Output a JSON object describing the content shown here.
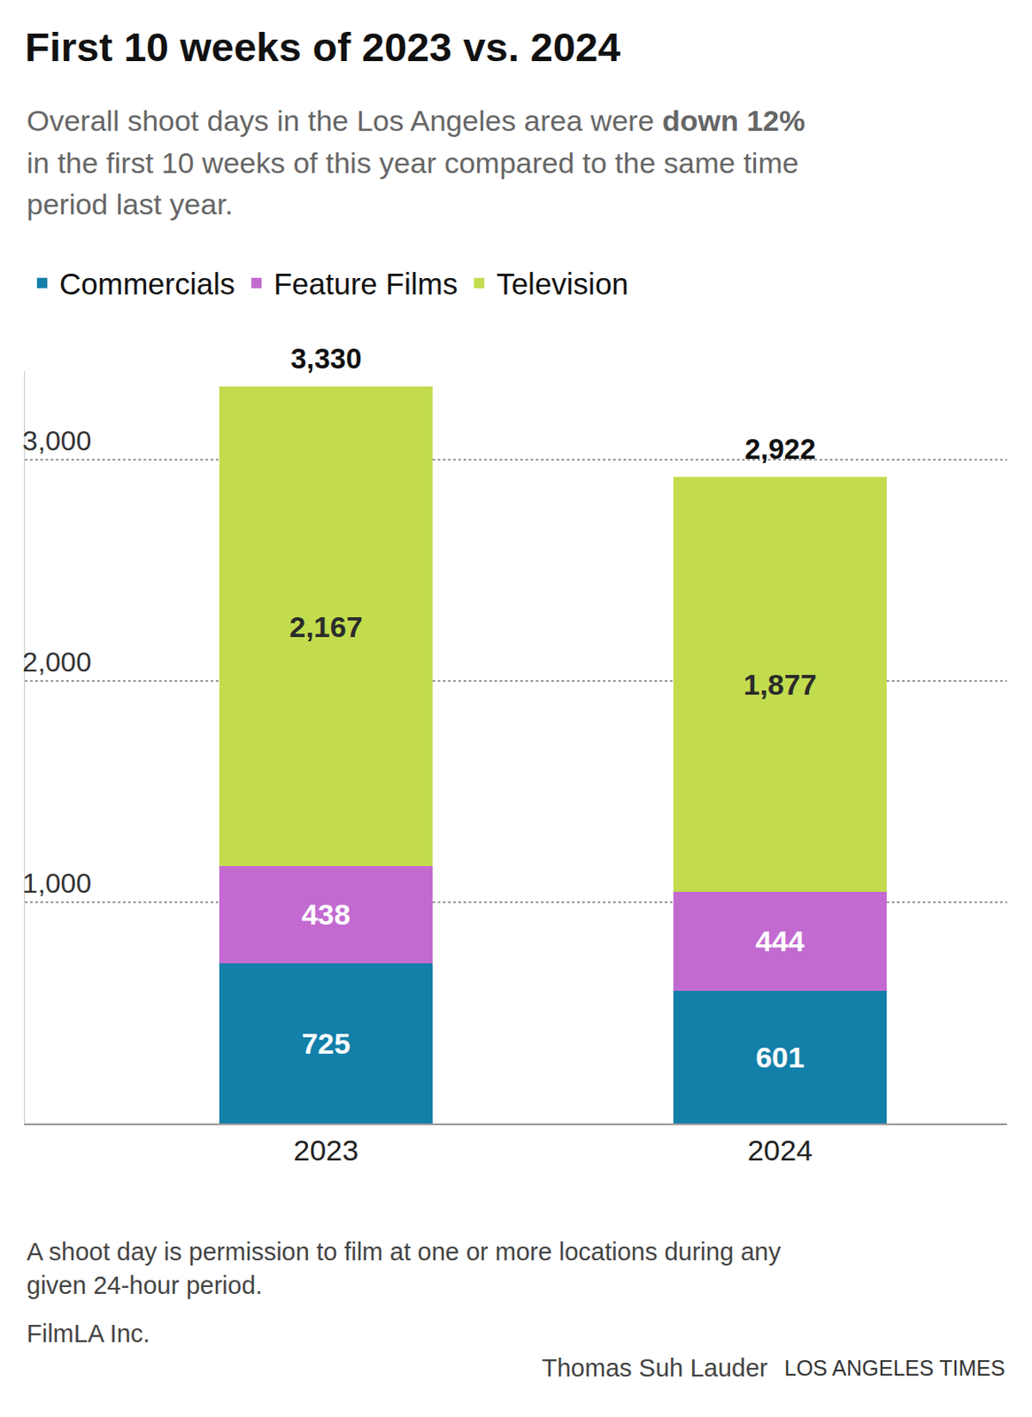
{
  "chart_data": {
    "type": "bar",
    "stacked": true,
    "title": "First 10 weeks of 2023 vs. 2024",
    "subtitle": [
      "Overall shoot days in the Los Angeles area were down 12%",
      "in the first 10 weeks of this year compared to the same time",
      "period last year."
    ],
    "subtitle_emphasis": "down 12%",
    "categories": [
      "2023",
      "2024"
    ],
    "series": [
      {
        "name": "Commercials",
        "color": "#1380aa",
        "values": [
          725,
          601
        ]
      },
      {
        "name": "Feature Films",
        "color": "#c36ad1",
        "values": [
          438,
          444
        ]
      },
      {
        "name": "Television",
        "color": "#c2dc4e",
        "values": [
          2167,
          1877
        ],
        "value_labels": [
          "2,167",
          "1,877"
        ]
      }
    ],
    "totals": [
      3330,
      2922
    ],
    "total_labels": [
      "3,330",
      "2,922"
    ],
    "data_labels": true,
    "ylim": [
      0,
      3400
    ],
    "yticks": [
      {
        "value": 1000,
        "label": "1,000"
      },
      {
        "value": 2000,
        "label": "2,000"
      },
      {
        "value": 3000,
        "label": "3,000"
      }
    ],
    "grid": true,
    "legend": "top left",
    "footnote": [
      "A shoot day is permission to film at one or more locations during any",
      "given 24-hour period."
    ],
    "source": "FilmLA Inc.",
    "credit": "Thomas Suh Lauder",
    "publication": "LOS ANGELES TIMES"
  }
}
